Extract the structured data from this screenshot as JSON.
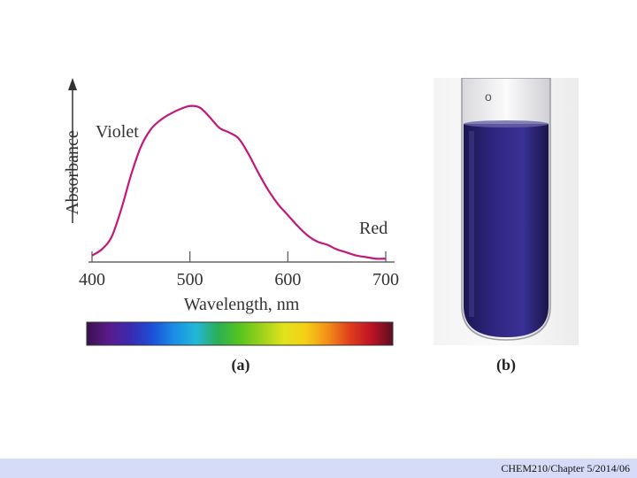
{
  "chart_data": {
    "type": "line",
    "xlabel": "Wavelength, nm",
    "ylabel": "Absorbance",
    "x_ticks": [
      400,
      500,
      600,
      700
    ],
    "xlim": [
      400,
      700
    ],
    "ylim": [
      0,
      1
    ],
    "grid": false,
    "series": [
      {
        "color": "#c2187a",
        "x": [
          400,
          410,
          420,
          430,
          440,
          450,
          460,
          470,
          480,
          490,
          500,
          510,
          520,
          530,
          540,
          550,
          560,
          570,
          580,
          590,
          600,
          610,
          620,
          630,
          640,
          650,
          660,
          670,
          680,
          690,
          700
        ],
        "y": [
          0.03,
          0.07,
          0.15,
          0.33,
          0.55,
          0.73,
          0.84,
          0.9,
          0.94,
          0.97,
          0.99,
          0.98,
          0.92,
          0.85,
          0.82,
          0.78,
          0.68,
          0.56,
          0.45,
          0.36,
          0.29,
          0.22,
          0.16,
          0.12,
          0.1,
          0.07,
          0.05,
          0.03,
          0.02,
          0.01,
          0.01
        ]
      }
    ],
    "annotations": [
      "Violet",
      "Red"
    ],
    "spectrum_bar": {
      "colors": [
        "#3a1050",
        "#5a1a8a",
        "#3a2ab0",
        "#1d4fd6",
        "#1a8ee6",
        "#22b7d8",
        "#2aaf55",
        "#56c41e",
        "#9bd11a",
        "#e0e21c",
        "#f5d015",
        "#f39018",
        "#e0401a",
        "#c01226",
        "#5a1020"
      ]
    }
  },
  "panel_labels": {
    "a": "(a)",
    "b": "(b)"
  },
  "footer": {
    "text": "CHEM210/Chapter 5/2014/06",
    "bg": "#d6dcf7"
  },
  "photo": {
    "liquid_color": "#2c2473",
    "tube_label": "o"
  }
}
